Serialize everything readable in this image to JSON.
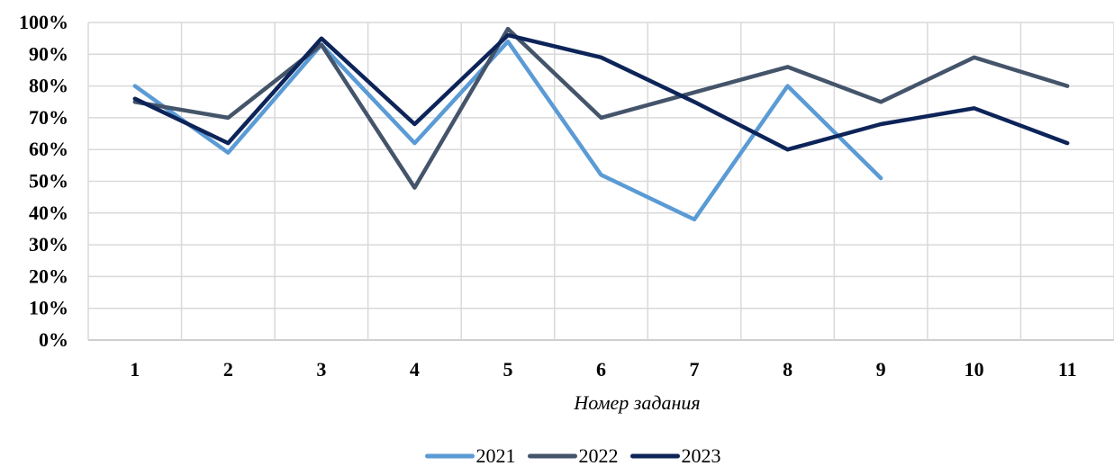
{
  "chart_data": {
    "type": "line",
    "title": "",
    "xlabel": "Номер задания",
    "ylabel": "",
    "categories": [
      "1",
      "2",
      "3",
      "4",
      "5",
      "6",
      "7",
      "8",
      "9",
      "10",
      "11"
    ],
    "y_ticks": [
      "0%",
      "10%",
      "20%",
      "30%",
      "40%",
      "50%",
      "60%",
      "70%",
      "80%",
      "90%",
      "100%"
    ],
    "ylim": [
      0,
      100
    ],
    "grid": true,
    "legend_position": "bottom",
    "series": [
      {
        "name": "2021",
        "color": "#5b9bd5",
        "values": [
          80,
          59,
          93,
          62,
          94,
          52,
          38,
          80,
          51,
          null,
          null
        ]
      },
      {
        "name": "2022",
        "color": "#44546a",
        "values": [
          75,
          70,
          93,
          48,
          98,
          70,
          78,
          86,
          75,
          89,
          80
        ]
      },
      {
        "name": "2023",
        "color": "#0d2459",
        "values": [
          76,
          62,
          95,
          68,
          96,
          89,
          75,
          60,
          68,
          73,
          62
        ]
      }
    ]
  }
}
